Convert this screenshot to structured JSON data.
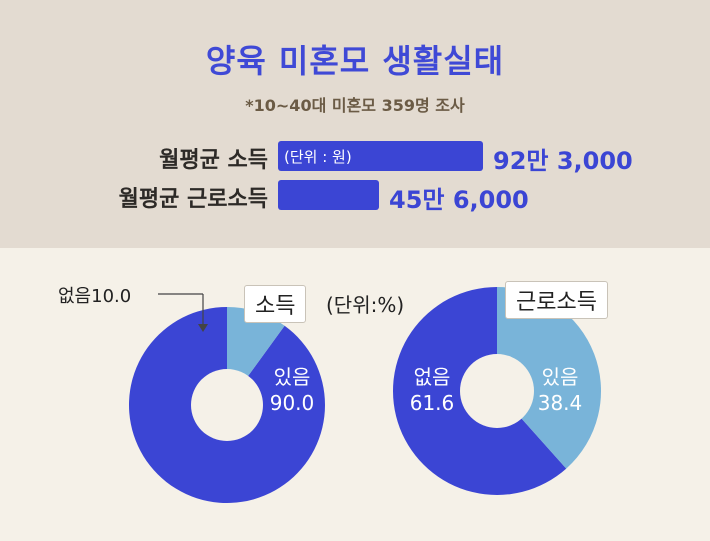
{
  "header": {
    "title": "양육 미혼모 생활실태",
    "subtitle": "*10~40대 미혼모 359명 조사"
  },
  "colors": {
    "header_bg": "#e3dbd1",
    "body_bg": "#f5f1e8",
    "accent_blue": "#3b45d4",
    "light_blue": "#79b4d9"
  },
  "chart_data": [
    {
      "type": "bar",
      "orientation": "horizontal",
      "unit_note": "(단위 : 원)",
      "categories": [
        "월평균 소득",
        "월평균 근로소득"
      ],
      "values": [
        923000,
        456000
      ],
      "value_labels": [
        "92만 3,000",
        "45만 6,000"
      ]
    },
    {
      "type": "pie",
      "variant": "donut",
      "title": "소득",
      "unit_note": "(단위:%)",
      "slices": [
        {
          "label": "있음",
          "value": 90.0,
          "value_text": "90.0",
          "color": "#3b45d4"
        },
        {
          "label": "없음",
          "value": 10.0,
          "value_text": "10.0",
          "color": "#79b4d9"
        }
      ]
    },
    {
      "type": "pie",
      "variant": "donut",
      "title": "근로소득",
      "slices": [
        {
          "label": "있음",
          "value": 38.4,
          "value_text": "38.4",
          "color": "#79b4d9"
        },
        {
          "label": "없음",
          "value": 61.6,
          "value_text": "61.6",
          "color": "#3b45d4"
        }
      ]
    }
  ]
}
